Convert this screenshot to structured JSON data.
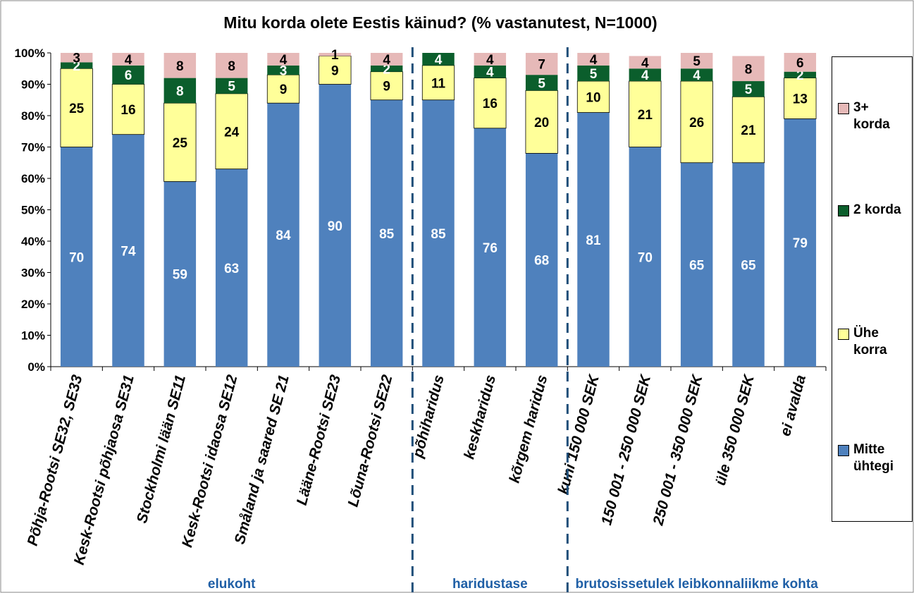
{
  "chart_data": {
    "type": "stacked_bar",
    "title": "Mitu korda olete Eestis käinud? (% vastanutest, N=1000)",
    "categories": [
      "Põhja-Rootsi SE32, SE33",
      "Kesk-Rootsi põhjaosa SE31",
      "Stockholmi lään SE11",
      "Kesk-Rootsi idaosa SE12",
      "Småland ja saared SE 21",
      "Lääne-Rootsi SE23",
      "Lõuna-Rootsi SE22",
      "põhiharidus",
      "keskharidus",
      "kõrgem haridus",
      "kuni 150 000 SEK",
      "150 001 - 250 000 SEK",
      "250 001 - 350 000 SEK",
      "üle 350 000 SEK",
      "ei avalda"
    ],
    "groups": [
      "elukoht",
      "haridustase",
      "brutosissetulek leibkonnaliikme kohta"
    ],
    "series": [
      {
        "name": "Mitte ühtegi",
        "color": "#4f81bd",
        "values": [
          70,
          74,
          59,
          63,
          84,
          90,
          85,
          85,
          76,
          68,
          81,
          70,
          65,
          65,
          79
        ]
      },
      {
        "name": "Ühe korra",
        "color": "#ffff99",
        "values": [
          25,
          16,
          25,
          24,
          9,
          9,
          9,
          11,
          16,
          20,
          10,
          21,
          26,
          21,
          13
        ]
      },
      {
        "name": "2 korda",
        "color": "#0b5e2c",
        "values": [
          2,
          6,
          8,
          5,
          3,
          0,
          2,
          4,
          4,
          5,
          5,
          4,
          4,
          5,
          2
        ]
      },
      {
        "name": "3+ korda",
        "color": "#e6b9b8",
        "values": [
          3,
          4,
          8,
          8,
          4,
          1,
          4,
          0,
          4,
          7,
          4,
          4,
          5,
          8,
          6
        ]
      }
    ],
    "ylim": [
      0,
      100
    ],
    "yticks": [
      {
        "value": 0,
        "label": "0%"
      },
      {
        "value": 10,
        "label": "10%"
      },
      {
        "value": 20,
        "label": "20%"
      },
      {
        "value": 30,
        "label": "30%"
      },
      {
        "value": 40,
        "label": "40%"
      },
      {
        "value": 50,
        "label": "50%"
      },
      {
        "value": 60,
        "label": "60%"
      },
      {
        "value": 70,
        "label": "70%"
      },
      {
        "value": 80,
        "label": "80%"
      },
      {
        "value": 90,
        "label": "90%"
      },
      {
        "value": 100,
        "label": "100%"
      }
    ],
    "legend": "right"
  }
}
